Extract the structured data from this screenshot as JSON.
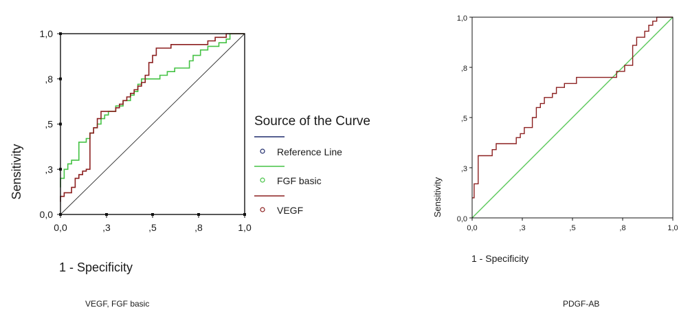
{
  "chart_data": [
    {
      "type": "line",
      "caption": "VEGF, FGF basic",
      "xlabel": "1 - Specificity",
      "ylabel": "Sensitivity",
      "xlim": [
        0,
        1
      ],
      "ylim": [
        0,
        1
      ],
      "x_ticks": [
        "0,0",
        ",3",
        ",5",
        ",8",
        "1,0"
      ],
      "y_ticks": [
        "0,0",
        ",3",
        ",5",
        ",8",
        "1,0"
      ],
      "grid": false,
      "legend": {
        "title": "Source of the Curve",
        "position": "right",
        "entries": [
          "Reference Line",
          "FGF basic",
          "VEGF"
        ]
      },
      "series": [
        {
          "name": "Reference Line",
          "color": "#2a2a2a",
          "points": [
            [
              0,
              0
            ],
            [
              1,
              1
            ]
          ]
        },
        {
          "name": "FGF basic",
          "color": "#44c244",
          "points": [
            [
              0,
              0.15
            ],
            [
              0,
              0.2
            ],
            [
              0.02,
              0.2
            ],
            [
              0.02,
              0.25
            ],
            [
              0.04,
              0.25
            ],
            [
              0.04,
              0.28
            ],
            [
              0.06,
              0.28
            ],
            [
              0.06,
              0.3
            ],
            [
              0.1,
              0.3
            ],
            [
              0.1,
              0.4
            ],
            [
              0.14,
              0.4
            ],
            [
              0.14,
              0.42
            ],
            [
              0.16,
              0.42
            ],
            [
              0.16,
              0.45
            ],
            [
              0.18,
              0.45
            ],
            [
              0.18,
              0.48
            ],
            [
              0.2,
              0.48
            ],
            [
              0.2,
              0.5
            ],
            [
              0.22,
              0.5
            ],
            [
              0.22,
              0.53
            ],
            [
              0.24,
              0.53
            ],
            [
              0.24,
              0.55
            ],
            [
              0.26,
              0.55
            ],
            [
              0.26,
              0.57
            ],
            [
              0.3,
              0.57
            ],
            [
              0.3,
              0.6
            ],
            [
              0.34,
              0.6
            ],
            [
              0.34,
              0.63
            ],
            [
              0.38,
              0.63
            ],
            [
              0.38,
              0.66
            ],
            [
              0.4,
              0.66
            ],
            [
              0.4,
              0.68
            ],
            [
              0.42,
              0.68
            ],
            [
              0.42,
              0.72
            ],
            [
              0.44,
              0.72
            ],
            [
              0.44,
              0.75
            ],
            [
              0.48,
              0.75
            ],
            [
              0.48,
              0.75
            ],
            [
              0.54,
              0.75
            ],
            [
              0.54,
              0.77
            ],
            [
              0.58,
              0.77
            ],
            [
              0.58,
              0.79
            ],
            [
              0.62,
              0.79
            ],
            [
              0.62,
              0.81
            ],
            [
              0.7,
              0.81
            ],
            [
              0.7,
              0.85
            ],
            [
              0.72,
              0.85
            ],
            [
              0.72,
              0.88
            ],
            [
              0.76,
              0.88
            ],
            [
              0.76,
              0.91
            ],
            [
              0.8,
              0.91
            ],
            [
              0.8,
              0.93
            ],
            [
              0.86,
              0.93
            ],
            [
              0.86,
              0.95
            ],
            [
              0.9,
              0.95
            ],
            [
              0.9,
              0.97
            ],
            [
              0.92,
              0.97
            ],
            [
              0.92,
              1
            ],
            [
              1,
              1
            ]
          ]
        },
        {
          "name": "VEGF",
          "color": "#8b1e1e",
          "points": [
            [
              0,
              0.07
            ],
            [
              0,
              0.1
            ],
            [
              0.02,
              0.1
            ],
            [
              0.02,
              0.12
            ],
            [
              0.06,
              0.12
            ],
            [
              0.06,
              0.15
            ],
            [
              0.08,
              0.15
            ],
            [
              0.08,
              0.2
            ],
            [
              0.1,
              0.2
            ],
            [
              0.1,
              0.22
            ],
            [
              0.12,
              0.22
            ],
            [
              0.12,
              0.24
            ],
            [
              0.14,
              0.24
            ],
            [
              0.14,
              0.25
            ],
            [
              0.16,
              0.25
            ],
            [
              0.16,
              0.45
            ],
            [
              0.18,
              0.45
            ],
            [
              0.18,
              0.48
            ],
            [
              0.2,
              0.48
            ],
            [
              0.2,
              0.53
            ],
            [
              0.22,
              0.53
            ],
            [
              0.22,
              0.57
            ],
            [
              0.3,
              0.57
            ],
            [
              0.3,
              0.59
            ],
            [
              0.32,
              0.59
            ],
            [
              0.32,
              0.61
            ],
            [
              0.34,
              0.61
            ],
            [
              0.34,
              0.63
            ],
            [
              0.36,
              0.63
            ],
            [
              0.36,
              0.65
            ],
            [
              0.38,
              0.65
            ],
            [
              0.38,
              0.67
            ],
            [
              0.4,
              0.67
            ],
            [
              0.4,
              0.69
            ],
            [
              0.42,
              0.69
            ],
            [
              0.42,
              0.71
            ],
            [
              0.44,
              0.71
            ],
            [
              0.44,
              0.73
            ],
            [
              0.46,
              0.73
            ],
            [
              0.46,
              0.77
            ],
            [
              0.48,
              0.77
            ],
            [
              0.48,
              0.84
            ],
            [
              0.5,
              0.84
            ],
            [
              0.5,
              0.88
            ],
            [
              0.52,
              0.88
            ],
            [
              0.52,
              0.92
            ],
            [
              0.6,
              0.92
            ],
            [
              0.6,
              0.94
            ],
            [
              0.8,
              0.94
            ],
            [
              0.8,
              0.96
            ],
            [
              0.84,
              0.96
            ],
            [
              0.84,
              0.98
            ],
            [
              0.9,
              0.98
            ],
            [
              0.9,
              1
            ],
            [
              1,
              1
            ]
          ]
        }
      ]
    },
    {
      "type": "line",
      "caption": "PDGF-AB",
      "xlabel": "1 - Specificity",
      "ylabel": "Sensitivity",
      "xlim": [
        0,
        1
      ],
      "ylim": [
        0,
        1
      ],
      "x_ticks": [
        "0,0",
        ",3",
        ",5",
        ",8",
        "1,0"
      ],
      "y_ticks": [
        "0,0",
        ",3",
        ",5",
        ",8",
        "1,0"
      ],
      "grid": false,
      "legend": null,
      "series": [
        {
          "color": "#5ac85a",
          "points": [
            [
              0,
              0
            ],
            [
              1,
              1
            ]
          ]
        },
        {
          "color": "#8b1e1e",
          "points": [
            [
              0,
              0.1
            ],
            [
              0.01,
              0.1
            ],
            [
              0.01,
              0.17
            ],
            [
              0.03,
              0.17
            ],
            [
              0.03,
              0.31
            ],
            [
              0.1,
              0.31
            ],
            [
              0.1,
              0.34
            ],
            [
              0.12,
              0.34
            ],
            [
              0.12,
              0.37
            ],
            [
              0.22,
              0.37
            ],
            [
              0.22,
              0.4
            ],
            [
              0.24,
              0.4
            ],
            [
              0.24,
              0.42
            ],
            [
              0.26,
              0.42
            ],
            [
              0.26,
              0.45
            ],
            [
              0.3,
              0.45
            ],
            [
              0.3,
              0.5
            ],
            [
              0.32,
              0.5
            ],
            [
              0.32,
              0.55
            ],
            [
              0.34,
              0.55
            ],
            [
              0.34,
              0.57
            ],
            [
              0.36,
              0.57
            ],
            [
              0.36,
              0.6
            ],
            [
              0.4,
              0.6
            ],
            [
              0.4,
              0.62
            ],
            [
              0.42,
              0.62
            ],
            [
              0.42,
              0.65
            ],
            [
              0.46,
              0.65
            ],
            [
              0.46,
              0.67
            ],
            [
              0.52,
              0.67
            ],
            [
              0.52,
              0.7
            ],
            [
              0.72,
              0.7
            ],
            [
              0.72,
              0.73
            ],
            [
              0.76,
              0.73
            ],
            [
              0.76,
              0.76
            ],
            [
              0.8,
              0.76
            ],
            [
              0.8,
              0.86
            ],
            [
              0.82,
              0.86
            ],
            [
              0.82,
              0.9
            ],
            [
              0.86,
              0.9
            ],
            [
              0.86,
              0.93
            ],
            [
              0.88,
              0.93
            ],
            [
              0.88,
              0.96
            ],
            [
              0.9,
              0.96
            ],
            [
              0.9,
              0.98
            ],
            [
              0.92,
              0.98
            ],
            [
              0.92,
              1
            ],
            [
              1,
              1
            ]
          ]
        }
      ]
    }
  ]
}
